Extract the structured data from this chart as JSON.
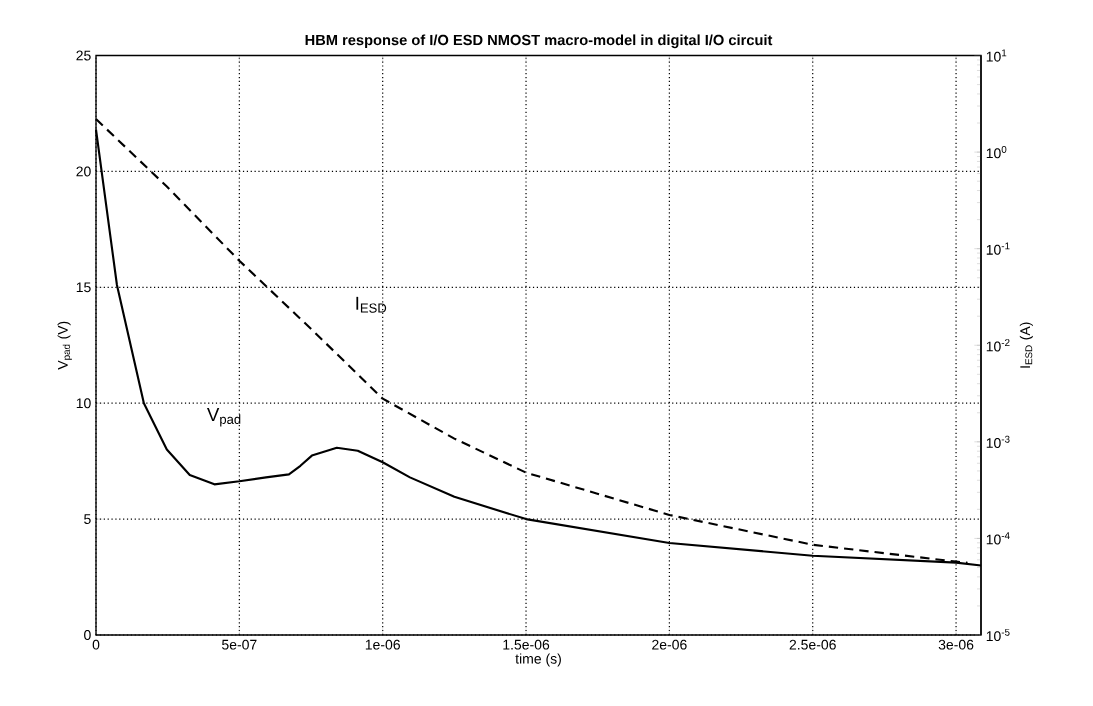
{
  "chart_data": {
    "type": "line",
    "title": "HBM response of I/O ESD NMOST macro-model in digital I/O circuit",
    "xlabel": "time (s)",
    "ylabel": "V$_{pad}$ (V)",
    "y2label": "I$_{ESD}$ (A)",
    "annotations": [
      "V$_{pad}$",
      "I$_{ESD}$"
    ],
    "xlim": [
      0,
      3.087e-06
    ],
    "ylim": [
      0,
      25
    ],
    "y2lim": [
      1e-05,
      10
    ],
    "log": "y2",
    "grid": true,
    "xticks": [
      0,
      {
        "value": 5e-07,
        "label": "5e-07"
      },
      {
        "value": 1e-06,
        "label": "1e-06"
      },
      {
        "value": 1.5e-06,
        "label": "1.5e-06"
      },
      {
        "value": 2e-06,
        "label": "2e-06"
      },
      {
        "value": 2.5e-06,
        "label": "2.5e-06"
      },
      {
        "value": 3e-06,
        "label": "3e-06"
      }
    ],
    "yticks": [
      0,
      5,
      10,
      15,
      20,
      25
    ],
    "y2ticks": [
      {
        "value": 1e-05,
        "label": "10$^{-5}$"
      },
      {
        "value": 0.0001,
        "label": "10$^{-4}$"
      },
      {
        "value": 0.001,
        "label": "10$^{-3}$"
      },
      {
        "value": 0.01,
        "label": "10$^{-2}$"
      },
      {
        "value": 0.1,
        "label": "10$^{-1}$"
      },
      {
        "value": 1,
        "label": "10$^{0}$"
      },
      {
        "value": 10,
        "label": "10$^{1}$"
      }
    ],
    "series": [
      {
        "color": "#000000",
        "line_style": "solid",
        "x": [
          0,
          7.3e-08,
          1.67e-07,
          2.47e-07,
          3.27e-07,
          4.13e-07,
          5e-07,
          5.93e-07,
          6.73e-07,
          7.13e-07,
          7.53e-07,
          8.4e-07,
          9.13e-07,
          1e-06,
          1.095e-06,
          1.25e-06,
          1.5e-06,
          2e-06,
          2.5e-06,
          3e-06,
          3.087e-06
        ],
        "values": [
          21.8,
          15.1,
          10.0,
          8.0,
          6.9,
          6.5,
          6.63,
          6.8,
          6.93,
          7.3,
          7.74,
          8.08,
          7.95,
          7.45,
          6.8,
          5.96,
          5.0,
          3.97,
          3.42,
          3.12,
          3.0
        ]
      },
      {
        "color": "#000000",
        "line_style": "dashed",
        "axis": "y2",
        "x": [
          0,
          2.47e-07,
          5e-07,
          7.53e-07,
          1e-06,
          1.25e-06,
          1.5e-06,
          2e-06,
          2.5e-06,
          3e-06,
          3.04e-06
        ],
        "values": [
          2.2,
          0.44,
          0.075,
          0.0145,
          0.0028,
          0.00108,
          0.00048,
          0.000175,
          8.6e-05,
          5.75e-05,
          5.6e-05
        ]
      }
    ]
  }
}
